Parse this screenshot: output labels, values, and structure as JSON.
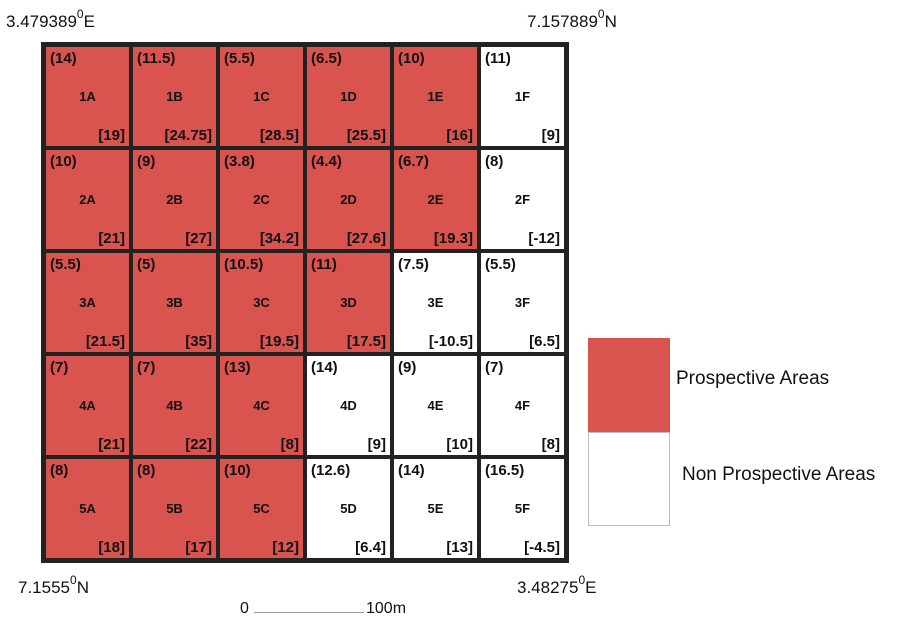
{
  "coordinates": {
    "top_left": {
      "value": "3.479389",
      "deg": "0",
      "dir": "E"
    },
    "top_right": {
      "value": "7.157889",
      "deg": "0",
      "dir": "N"
    },
    "bottom_left": {
      "value": "7.1555",
      "deg": "0",
      "dir": "N"
    },
    "bottom_right": {
      "value": "3.48275",
      "deg": "0",
      "dir": "E"
    }
  },
  "colors": {
    "prospective": "#d9534f",
    "non_prospective": "#ffffff"
  },
  "cells": [
    {
      "id": "1A",
      "v1": "(14)",
      "v2": "[19]",
      "prospective": true
    },
    {
      "id": "1B",
      "v1": "(11.5)",
      "v2": "[24.75]",
      "prospective": true
    },
    {
      "id": "1C",
      "v1": "(5.5)",
      "v2": "[28.5]",
      "prospective": true
    },
    {
      "id": "1D",
      "v1": "(6.5)",
      "v2": "[25.5]",
      "prospective": true
    },
    {
      "id": "1E",
      "v1": "(10)",
      "v2": "[16]",
      "prospective": true
    },
    {
      "id": "1F",
      "v1": "(11)",
      "v2": "[9]",
      "prospective": false
    },
    {
      "id": "2A",
      "v1": "(10)",
      "v2": "[21]",
      "prospective": true
    },
    {
      "id": "2B",
      "v1": "(9)",
      "v2": "[27]",
      "prospective": true
    },
    {
      "id": "2C",
      "v1": "(3.8)",
      "v2": "[34.2]",
      "prospective": true
    },
    {
      "id": "2D",
      "v1": "(4.4)",
      "v2": "[27.6]",
      "prospective": true
    },
    {
      "id": "2E",
      "v1": "(6.7)",
      "v2": "[19.3]",
      "prospective": true
    },
    {
      "id": "2F",
      "v1": "(8)",
      "v2": "[-12]",
      "prospective": false
    },
    {
      "id": "3A",
      "v1": "(5.5)",
      "v2": "[21.5]",
      "prospective": true
    },
    {
      "id": "3B",
      "v1": "(5)",
      "v2": "[35]",
      "prospective": true
    },
    {
      "id": "3C",
      "v1": "(10.5)",
      "v2": "[19.5]",
      "prospective": true
    },
    {
      "id": "3D",
      "v1": "(11)",
      "v2": "[17.5]",
      "prospective": true
    },
    {
      "id": "3E",
      "v1": "(7.5)",
      "v2": "[-10.5]",
      "prospective": false
    },
    {
      "id": "3F",
      "v1": "(5.5)",
      "v2": "[6.5]",
      "prospective": false
    },
    {
      "id": "4A",
      "v1": "(7)",
      "v2": "[21]",
      "prospective": true
    },
    {
      "id": "4B",
      "v1": "(7)",
      "v2": "[22]",
      "prospective": true
    },
    {
      "id": "4C",
      "v1": "(13)",
      "v2": "[8]",
      "prospective": true
    },
    {
      "id": "4D",
      "v1": "(14)",
      "v2": "[9]",
      "prospective": false
    },
    {
      "id": "4E",
      "v1": "(9)",
      "v2": "[10]",
      "prospective": false
    },
    {
      "id": "4F",
      "v1": "(7)",
      "v2": "[8]",
      "prospective": false
    },
    {
      "id": "5A",
      "v1": "(8)",
      "v2": "[18]",
      "prospective": true
    },
    {
      "id": "5B",
      "v1": "(8)",
      "v2": "[17]",
      "prospective": true
    },
    {
      "id": "5C",
      "v1": "(10)",
      "v2": "[12]",
      "prospective": true
    },
    {
      "id": "5D",
      "v1": "(12.6)",
      "v2": "[6.4]",
      "prospective": false
    },
    {
      "id": "5E",
      "v1": "(14)",
      "v2": "[13]",
      "prospective": false
    },
    {
      "id": "5F",
      "v1": "(16.5)",
      "v2": "[-4.5]",
      "prospective": false
    }
  ],
  "legend": {
    "prospective_label": "Prospective Areas",
    "non_prospective_label": "Non Prospective Areas"
  },
  "scale": {
    "start": "0",
    "end": "100m"
  }
}
